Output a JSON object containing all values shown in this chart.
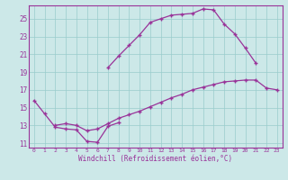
{
  "xlabel": "Windchill (Refroidissement éolien,°C)",
  "background_color": "#cce8e8",
  "line_color": "#993399",
  "xlim": [
    -0.5,
    23.5
  ],
  "ylim": [
    10.5,
    26.5
  ],
  "xticks": [
    0,
    1,
    2,
    3,
    4,
    5,
    6,
    7,
    8,
    9,
    10,
    11,
    12,
    13,
    14,
    15,
    16,
    17,
    18,
    19,
    20,
    21,
    22,
    23
  ],
  "yticks": [
    11,
    13,
    15,
    17,
    19,
    21,
    23,
    25
  ],
  "line1_x": [
    0,
    1,
    2,
    3,
    4,
    5,
    6,
    7,
    8
  ],
  "line1_y": [
    15.8,
    14.3,
    12.8,
    12.6,
    12.5,
    11.2,
    11.1,
    12.9,
    13.3
  ],
  "line2_x": [
    7,
    8,
    9,
    10,
    11,
    12,
    13,
    14,
    15,
    16,
    17,
    18,
    19,
    20,
    21
  ],
  "line2_y": [
    19.5,
    20.8,
    22.0,
    23.2,
    24.6,
    25.0,
    25.4,
    25.5,
    25.6,
    26.1,
    26.0,
    24.4,
    23.3,
    21.7,
    20.0
  ],
  "line3_x": [
    2,
    3,
    4,
    5,
    6,
    7,
    8,
    9,
    10,
    11,
    12,
    13,
    14,
    15,
    16,
    17,
    18,
    19,
    20,
    21,
    22,
    23
  ],
  "line3_y": [
    13.0,
    13.2,
    13.0,
    12.4,
    12.6,
    13.2,
    13.8,
    14.2,
    14.6,
    15.1,
    15.6,
    16.1,
    16.5,
    17.0,
    17.3,
    17.6,
    17.9,
    18.0,
    18.1,
    18.1,
    17.2,
    17.0
  ],
  "grid_color": "#99cccc",
  "marker": "+"
}
